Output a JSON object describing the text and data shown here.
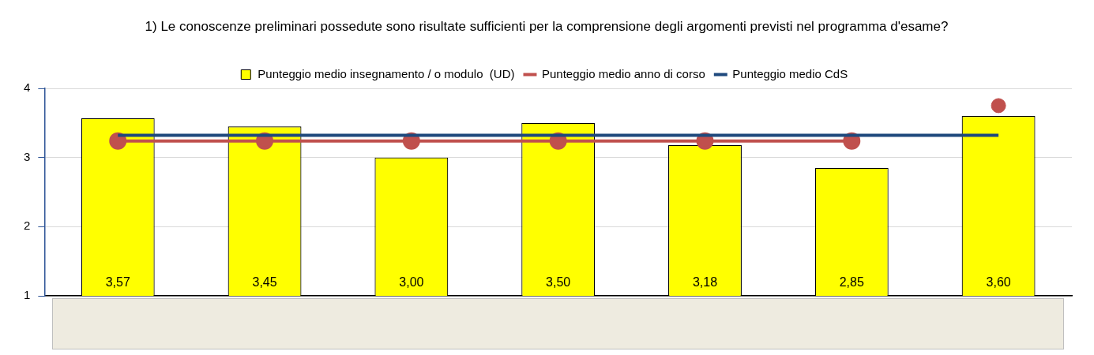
{
  "chart_data": {
    "type": "bar",
    "title": "1) Le conoscenze preliminari possedute sono risultate sufficienti per la comprensione degli argomenti previsti nel programma d'esame?",
    "categories": [
      null,
      null,
      null,
      null,
      null,
      null,
      null
    ],
    "series": [
      {
        "name": "Punteggio medio insegnamento / o modulo  (UD)",
        "color": "#ffff00",
        "values": [
          3.57,
          3.45,
          3.0,
          3.5,
          3.18,
          2.85,
          3.6
        ],
        "value_labels": [
          "3,57",
          "3,45",
          "3,00",
          "3,50",
          "3,18",
          "2,85",
          "3,60"
        ]
      },
      {
        "name": "Punteggio medio anno di corso",
        "type": "line",
        "marker": "circle",
        "color": "#c0504d",
        "values": [
          3.24,
          3.24,
          3.24,
          3.24,
          3.24,
          3.24,
          null
        ]
      },
      {
        "type": "scatter",
        "marker": "circle",
        "color": "#c0504d",
        "values": [
          null,
          null,
          null,
          null,
          null,
          null,
          3.75
        ]
      },
      {
        "name": "Punteggio medio CdS",
        "type": "line",
        "marker": "none",
        "color": "#1f497d",
        "values": [
          3.32,
          3.32,
          3.32,
          3.32,
          3.32,
          3.32,
          3.32
        ]
      }
    ],
    "ylim": [
      1,
      4
    ],
    "yticks": [
      1,
      2,
      3,
      4
    ],
    "grid": "y",
    "legend": "top",
    "tick_labels": "y"
  }
}
